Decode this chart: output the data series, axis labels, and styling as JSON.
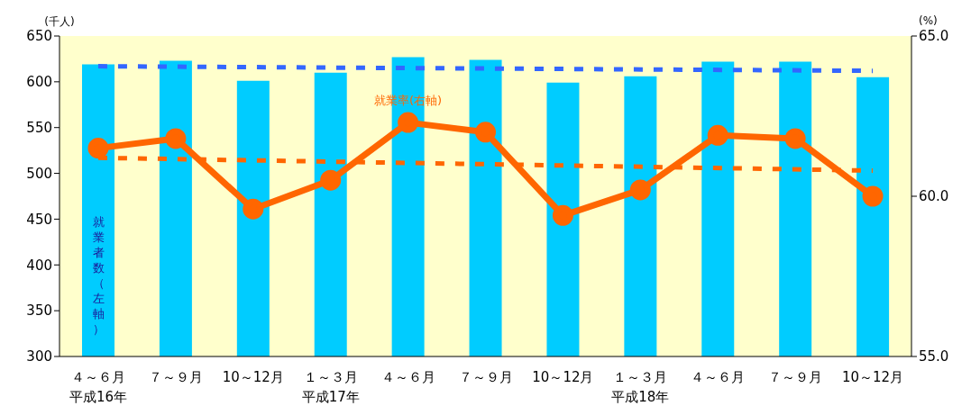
{
  "chart_data": {
    "type": "bar",
    "ylabel": "(千人)",
    "y2label": "(%)",
    "categories": [
      "４～６月平成16年",
      "７～９月",
      "10～12月",
      "１～３月平成17年",
      "４～６月",
      "７～９月",
      "10～12月",
      "１～３月平成18年",
      "４～６月",
      "７～９月",
      "10～12月"
    ],
    "series": [
      {
        "name": "就業者数（左軸）",
        "color": "#00ccff",
        "values": [
          619,
          623,
          601,
          610,
          627,
          624,
          599,
          606,
          622,
          622,
          605
        ]
      },
      {
        "name": "就業率(右軸)",
        "type": "line",
        "axis": "y2",
        "color": "#ff6600",
        "marker": "circle",
        "line_style": "solid",
        "values": [
          61.5,
          61.8,
          59.6,
          60.5,
          62.3,
          62.0,
          59.4,
          60.2,
          61.9,
          61.8,
          60.0
        ]
      },
      {
        "type": "line",
        "color": "#3366ff",
        "marker": "none",
        "line_style": "dashed",
        "values": [
          617,
          null,
          null,
          null,
          null,
          null,
          null,
          null,
          null,
          null,
          612
        ]
      },
      {
        "type": "line",
        "axis": "y2",
        "color": "#ff6600",
        "marker": "none",
        "line_style": "dashed",
        "values": [
          61.2,
          null,
          null,
          null,
          null,
          null,
          null,
          null,
          null,
          null,
          60.8
        ]
      }
    ],
    "ylim": [
      300,
      650
    ],
    "yticks": [
      300,
      350,
      400,
      450,
      500,
      550,
      600,
      650
    ],
    "y2lim": [
      55,
      65
    ],
    "y2ticks": [
      {
        "value": 55,
        "label": "55.0"
      },
      {
        "value": 60,
        "label": "60.0"
      },
      {
        "value": 65,
        "label": "65.0"
      }
    ],
    "grid": false,
    "legend": false
  }
}
